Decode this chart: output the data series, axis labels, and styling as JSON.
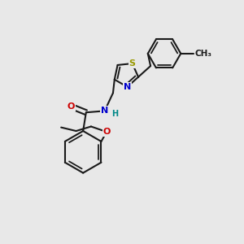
{
  "bg_color": "#e8e8e8",
  "bond_color": "#1a1a1a",
  "bond_width": 1.5,
  "font_size_atom": 8,
  "S_color": "#999900",
  "N_color": "#0000cc",
  "O_color": "#cc0000",
  "H_color": "#008888",
  "xlim": [
    -0.5,
    7.5
  ],
  "ylim": [
    -0.5,
    5.5
  ]
}
